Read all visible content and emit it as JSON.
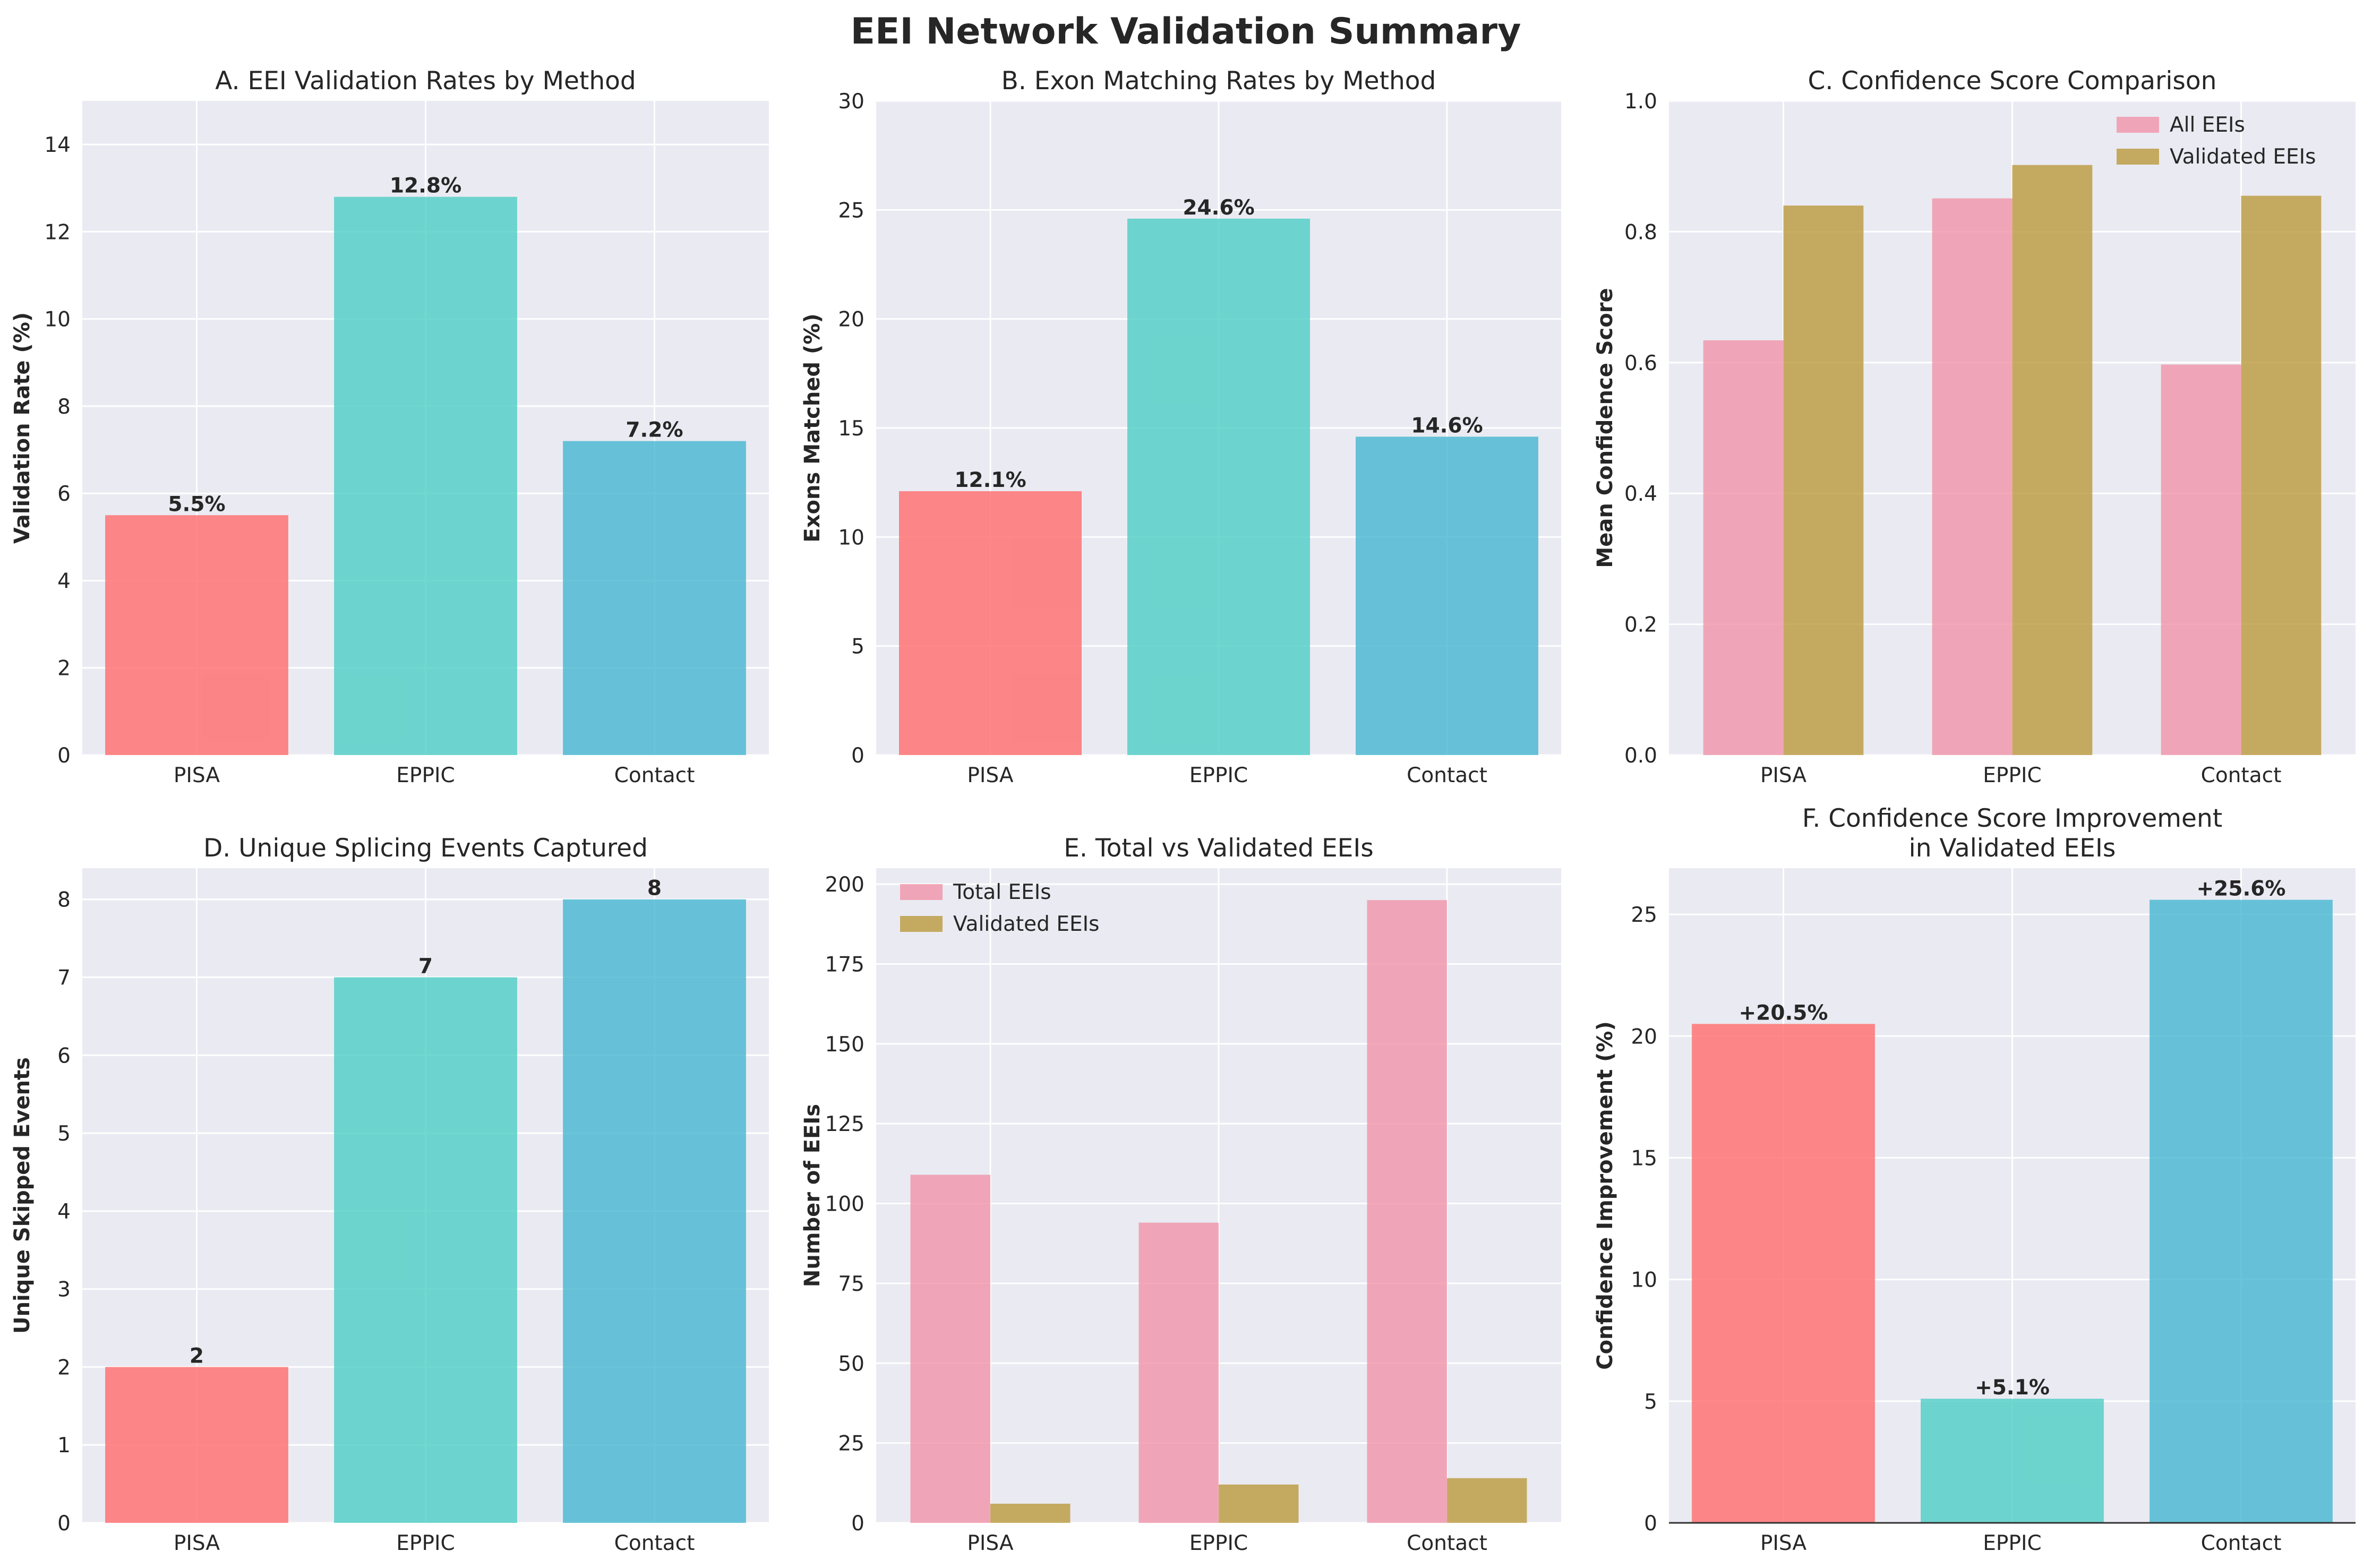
{
  "figure": {
    "title": "EEI Network Validation Summary"
  },
  "colors": {
    "PISA": "#FF6B6B",
    "EPPIC": "#4ECDC4",
    "Contact": "#45B7D1",
    "series_pink": "#F093A8",
    "series_olive": "#BA9A3C",
    "panel_bg": "#EAEAF2",
    "grid": "#FFFFFF",
    "text": "#262626"
  },
  "chart_data": [
    {
      "type": "bar",
      "title": "A. EEI Validation Rates by Method",
      "ylabel": "Validation Rate (%)",
      "categories": [
        "PISA",
        "EPPIC",
        "Contact"
      ],
      "values": [
        5.5,
        12.8,
        7.2
      ],
      "data_labels": [
        "5.5%",
        "12.8%",
        "7.2%"
      ],
      "ylim": [
        0,
        15
      ],
      "yticks": [
        0,
        2,
        4,
        6,
        8,
        10,
        12,
        14
      ],
      "grid": true
    },
    {
      "type": "bar",
      "title": "B. Exon Matching Rates by Method",
      "ylabel": "Exons Matched (%)",
      "categories": [
        "PISA",
        "EPPIC",
        "Contact"
      ],
      "values": [
        12.1,
        24.6,
        14.6
      ],
      "data_labels": [
        "12.1%",
        "24.6%",
        "14.6%"
      ],
      "ylim": [
        0,
        30
      ],
      "yticks": [
        0,
        5,
        10,
        15,
        20,
        25,
        30
      ],
      "grid": true
    },
    {
      "type": "bar",
      "title": "C. Confidence Score Comparison",
      "ylabel": "Mean Confidence Score",
      "categories": [
        "PISA",
        "EPPIC",
        "Contact"
      ],
      "series": [
        {
          "name": "All EEIs",
          "values": [
            0.634,
            0.851,
            0.597
          ]
        },
        {
          "name": "Validated EEIs",
          "values": [
            0.84,
            0.902,
            0.855
          ]
        }
      ],
      "ylim": [
        0,
        1.0
      ],
      "yticks": [
        0.0,
        0.2,
        0.4,
        0.6,
        0.8,
        1.0
      ],
      "ytick_labels": [
        "0.0",
        "0.2",
        "0.4",
        "0.6",
        "0.8",
        "1.0"
      ],
      "legend": "top-right",
      "grid": true
    },
    {
      "type": "bar",
      "title": "D. Unique Splicing Events Captured",
      "ylabel": "Unique Skipped Events",
      "categories": [
        "PISA",
        "EPPIC",
        "Contact"
      ],
      "values": [
        2,
        7,
        8
      ],
      "data_labels": [
        "2",
        "7",
        "8"
      ],
      "ylim": [
        0,
        8.4
      ],
      "yticks": [
        0,
        1,
        2,
        3,
        4,
        5,
        6,
        7,
        8
      ],
      "grid": true
    },
    {
      "type": "bar",
      "title": "E. Total vs Validated EEIs",
      "ylabel": "Number of EEIs",
      "categories": [
        "PISA",
        "EPPIC",
        "Contact"
      ],
      "series": [
        {
          "name": "Total EEIs",
          "values": [
            109,
            94,
            195
          ]
        },
        {
          "name": "Validated EEIs",
          "values": [
            6,
            12,
            14
          ]
        }
      ],
      "ylim": [
        0,
        205
      ],
      "yticks": [
        0,
        25,
        50,
        75,
        100,
        125,
        150,
        175,
        200
      ],
      "legend": "top-left",
      "grid": true
    },
    {
      "type": "bar",
      "title": "F. Confidence Score Improvement\nin Validated EEIs",
      "ylabel": "Confidence Improvement (%)",
      "categories": [
        "PISA",
        "EPPIC",
        "Contact"
      ],
      "values": [
        20.5,
        5.1,
        25.6
      ],
      "data_labels": [
        "+20.5%",
        "+5.1%",
        "+25.6%"
      ],
      "ylim": [
        0,
        26.9
      ],
      "yticks": [
        0,
        5,
        10,
        15,
        20,
        25
      ],
      "grid": true
    }
  ]
}
